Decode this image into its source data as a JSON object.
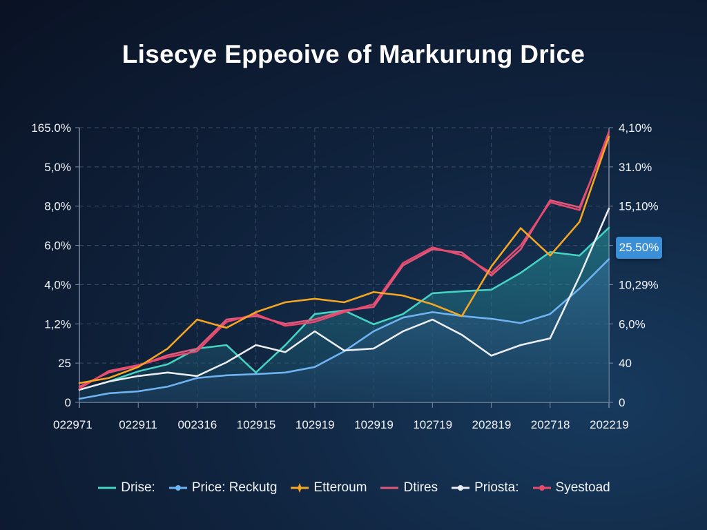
{
  "chart_data": {
    "type": "line",
    "title": "Lisecye Eppeoive of Markurung Drice",
    "x_tick_labels": [
      "022971",
      "022911",
      "002316",
      "102915",
      "102919",
      "102919",
      "102719",
      "202819",
      "202718",
      "202219"
    ],
    "y_left_tick_labels": [
      "0",
      "25",
      "1,2%",
      "4,0%",
      "6,0%",
      "8,0%",
      "5,0%",
      "165.0%"
    ],
    "y_right_tick_labels": [
      "0",
      "40",
      "6,0%",
      "10,29%",
      "25.50%",
      "15,10%",
      "31.0%",
      "4,10%"
    ],
    "y_range": [
      0,
      7
    ],
    "x": [
      0,
      0.5,
      1,
      1.5,
      2,
      2.5,
      3,
      3.5,
      4,
      4.5,
      5,
      5.5,
      6,
      6.5,
      7,
      7.5,
      8,
      8.5,
      9
    ],
    "grid": true,
    "legend_position": "bottom",
    "highlight_label": "25.50%",
    "series": [
      {
        "name": "Drise:",
        "color": "#45d3c4",
        "marker": "line",
        "fill": true,
        "values": [
          0.32,
          0.53,
          0.79,
          0.97,
          1.37,
          1.46,
          0.76,
          1.46,
          2.25,
          2.34,
          1.99,
          2.25,
          2.78,
          2.83,
          2.87,
          3.3,
          3.83,
          3.74,
          4.45
        ]
      },
      {
        "name": "Price: Reckutg",
        "color": "#6fb3f2",
        "marker": "dot",
        "fill": true,
        "values": [
          0.09,
          0.23,
          0.28,
          0.4,
          0.62,
          0.69,
          0.72,
          0.76,
          0.9,
          1.3,
          1.81,
          2.16,
          2.3,
          2.2,
          2.13,
          2.02,
          2.25,
          2.9,
          3.65
        ]
      },
      {
        "name": "Etteroum",
        "color": "#f5a623",
        "marker": "star",
        "fill": false,
        "values": [
          0.49,
          0.62,
          0.9,
          1.37,
          2.11,
          1.9,
          2.3,
          2.55,
          2.64,
          2.55,
          2.81,
          2.72,
          2.5,
          2.2,
          3.46,
          4.44,
          3.74,
          4.6,
          6.77
        ]
      },
      {
        "name": "Dtires",
        "color": "#e0587a",
        "marker": "line",
        "fill": false,
        "values": [
          0.4,
          0.76,
          0.93,
          1.2,
          1.37,
          2.11,
          2.2,
          2.0,
          2.11,
          2.34,
          2.43,
          3.49,
          3.9,
          3.82,
          3.23,
          3.9,
          5.15,
          4.97,
          6.77
        ]
      },
      {
        "name": "Priosta:",
        "color": "#ecedf0",
        "marker": "dot",
        "fill": false,
        "values": [
          0.32,
          0.53,
          0.67,
          0.76,
          0.67,
          1.02,
          1.46,
          1.28,
          1.81,
          1.32,
          1.37,
          1.81,
          2.11,
          1.72,
          1.19,
          1.46,
          1.63,
          3.21,
          4.94
        ]
      },
      {
        "name": "Syestoad",
        "color": "#e84a6f",
        "marker": "dot",
        "fill": false,
        "values": [
          0.35,
          0.8,
          0.95,
          1.15,
          1.3,
          2.05,
          2.25,
          1.95,
          2.05,
          2.3,
          2.5,
          3.55,
          3.95,
          3.75,
          3.3,
          4.0,
          5.1,
          4.9,
          6.9
        ]
      }
    ]
  }
}
